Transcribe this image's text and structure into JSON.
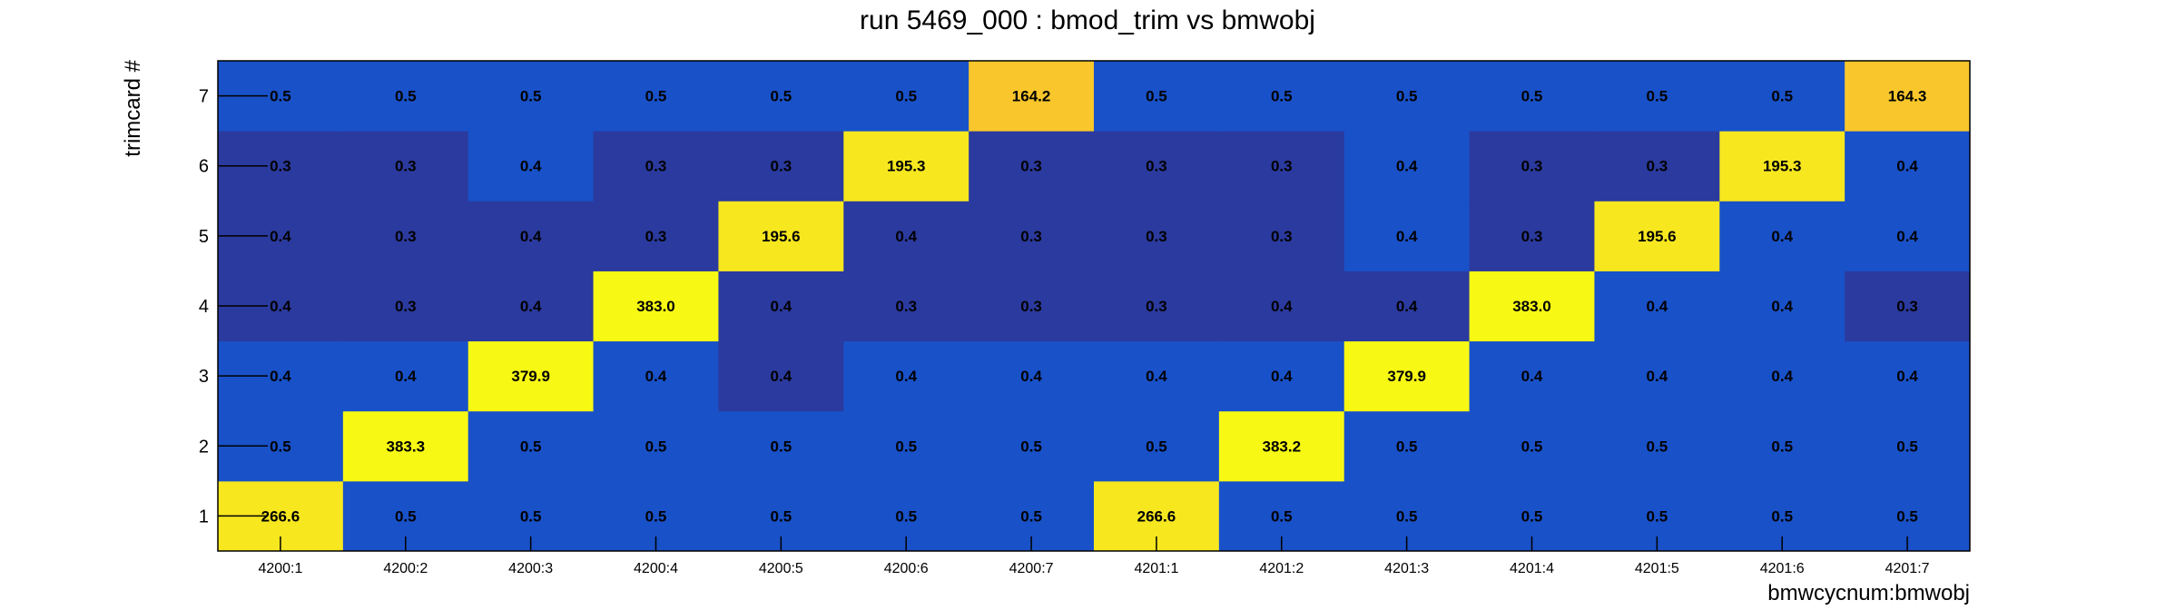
{
  "chart_data": {
    "type": "heatmap",
    "title": "run 5469_000 : bmod_trim vs bmwobj",
    "xlabel": "bmwcycnum:bmwobj",
    "ylabel": "trimcard #",
    "x_categories": [
      "4200:1",
      "4200:2",
      "4200:3",
      "4200:4",
      "4200:5",
      "4200:6",
      "4200:7",
      "4201:1",
      "4201:2",
      "4201:3",
      "4201:4",
      "4201:5",
      "4201:6",
      "4201:7"
    ],
    "y_categories": [
      "1",
      "2",
      "3",
      "4",
      "5",
      "6",
      "7"
    ],
    "values": [
      [
        "266.6",
        "0.5",
        "0.5",
        "0.5",
        "0.5",
        "0.5",
        "0.5",
        "266.6",
        "0.5",
        "0.5",
        "0.5",
        "0.5",
        "0.5",
        "0.5"
      ],
      [
        "0.5",
        "383.3",
        "0.5",
        "0.5",
        "0.5",
        "0.5",
        "0.5",
        "0.5",
        "383.2",
        "0.5",
        "0.5",
        "0.5",
        "0.5",
        "0.5"
      ],
      [
        "0.4",
        "0.4",
        "379.9",
        "0.4",
        "0.4",
        "0.4",
        "0.4",
        "0.4",
        "0.4",
        "379.9",
        "0.4",
        "0.4",
        "0.4",
        "0.4"
      ],
      [
        "0.4",
        "0.3",
        "0.4",
        "383.0",
        "0.4",
        "0.3",
        "0.3",
        "0.3",
        "0.4",
        "0.4",
        "383.0",
        "0.4",
        "0.4",
        "0.3"
      ],
      [
        "0.4",
        "0.3",
        "0.4",
        "0.3",
        "195.6",
        "0.4",
        "0.3",
        "0.3",
        "0.3",
        "0.4",
        "0.3",
        "195.6",
        "0.4",
        "0.4"
      ],
      [
        "0.3",
        "0.3",
        "0.4",
        "0.3",
        "0.3",
        "195.3",
        "0.3",
        "0.3",
        "0.3",
        "0.4",
        "0.3",
        "0.3",
        "195.3",
        "0.4"
      ],
      [
        "0.5",
        "0.5",
        "0.5",
        "0.5",
        "0.5",
        "0.5",
        "164.2",
        "0.5",
        "0.5",
        "0.5",
        "0.5",
        "0.5",
        "0.5",
        "164.3"
      ]
    ],
    "color_scale": {
      "low_dark": "#2b3a9e",
      "low": "#1951c8",
      "mid_high": "#f9c72c",
      "high": "#f6e71f",
      "peak": "#f7f914"
    },
    "grid": false,
    "legend": "none"
  }
}
